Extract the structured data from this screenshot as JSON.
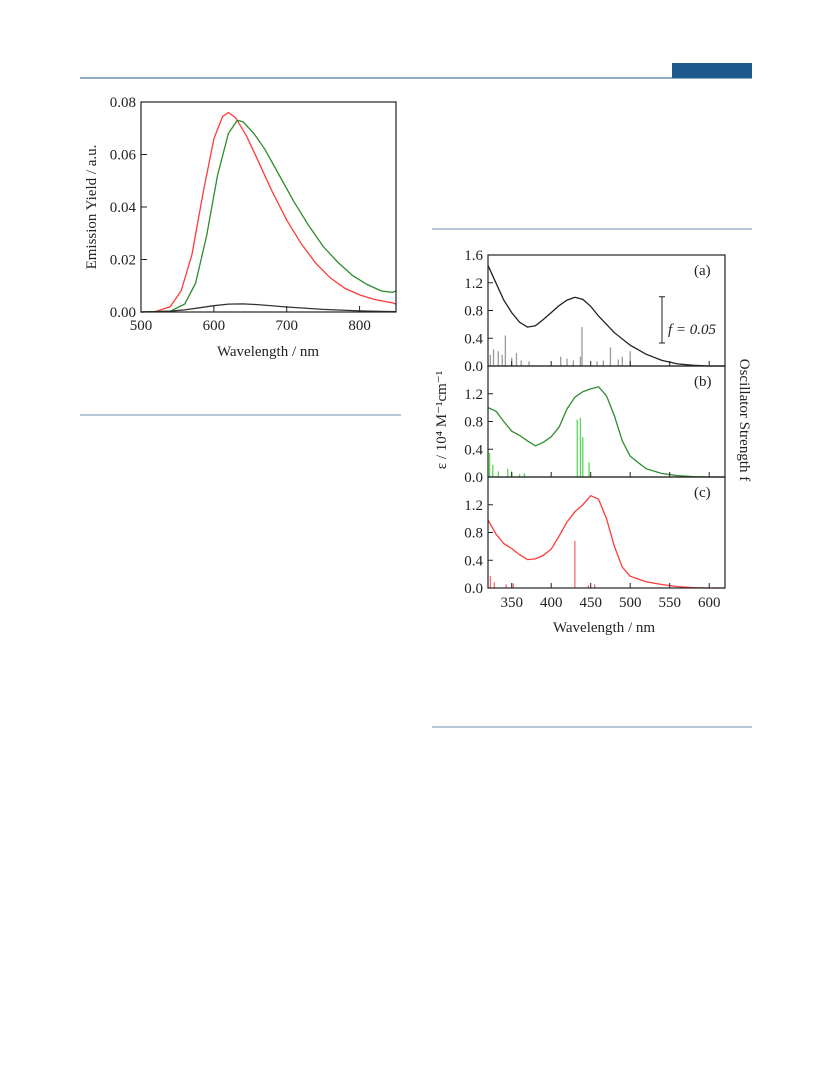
{
  "page": {
    "header_rule_color": "#1f5a8c",
    "header_tab_color": "#1f5a8c",
    "rule_color": "#6f8fad"
  },
  "chart_data": [
    {
      "type": "line",
      "title": "",
      "xlabel": "Wavelength / nm",
      "ylabel": "Emission Yield / a.u.",
      "xlim": [
        500,
        850
      ],
      "ylim": [
        0,
        0.08
      ],
      "x_ticks": [
        500,
        600,
        700,
        800
      ],
      "x_tick_labels": [
        "500",
        "600",
        "700",
        "800"
      ],
      "y_ticks": [
        0,
        0.02,
        0.04,
        0.06,
        0.08
      ],
      "y_tick_labels": [
        "0.00",
        "0.02",
        "0.04",
        "0.06",
        "0.08"
      ],
      "grid": false,
      "series": [
        {
          "color": "#ff3b3b",
          "x": [
            500,
            520,
            540,
            555,
            570,
            585,
            600,
            612,
            620,
            630,
            645,
            660,
            680,
            700,
            720,
            740,
            760,
            780,
            800,
            820,
            835,
            845,
            850
          ],
          "y": [
            0,
            0.0002,
            0.002,
            0.008,
            0.022,
            0.045,
            0.066,
            0.0745,
            0.076,
            0.074,
            0.067,
            0.058,
            0.046,
            0.035,
            0.026,
            0.0185,
            0.013,
            0.009,
            0.0065,
            0.0048,
            0.004,
            0.0035,
            0.003
          ]
        },
        {
          "color": "#2e8b2e",
          "x": [
            500,
            540,
            560,
            575,
            590,
            605,
            620,
            632,
            640,
            655,
            670,
            690,
            710,
            730,
            750,
            770,
            790,
            810,
            830,
            845,
            850
          ],
          "y": [
            0,
            0.0003,
            0.003,
            0.011,
            0.029,
            0.052,
            0.068,
            0.073,
            0.0725,
            0.068,
            0.062,
            0.052,
            0.042,
            0.033,
            0.025,
            0.019,
            0.014,
            0.0105,
            0.008,
            0.0075,
            0.008
          ]
        },
        {
          "color": "#333333",
          "x": [
            500,
            540,
            560,
            580,
            600,
            620,
            640,
            660,
            700,
            750,
            800,
            850
          ],
          "y": [
            0,
            0.0003,
            0.0008,
            0.0016,
            0.0024,
            0.003,
            0.0031,
            0.0028,
            0.0019,
            0.001,
            0.0004,
            0.0001
          ]
        }
      ]
    },
    {
      "type": "line",
      "title": "",
      "xlabel": "Wavelength / nm",
      "ylabel": "ε / 10⁴ M⁻¹cm⁻¹",
      "ylabel_right": "Oscillator Strength f",
      "xlim": [
        320,
        620
      ],
      "x_ticks": [
        350,
        400,
        450,
        500,
        550,
        600
      ],
      "x_tick_labels": [
        "350",
        "400",
        "450",
        "500",
        "550",
        "600"
      ],
      "grid": false,
      "scale_bar_label": "f = 0.05",
      "scale_bar_value": 0.05,
      "panels": [
        {
          "label": "(a)",
          "color": "#222222",
          "stick_color": "#9a9a9a",
          "ylim": [
            0,
            1.6
          ],
          "y_ticks": [
            0,
            0.4,
            0.8,
            1.2,
            1.6
          ],
          "y_tick_labels": [
            "0.0",
            "0.4",
            "0.8",
            "1.2",
            "1.6"
          ],
          "x": [
            320,
            330,
            340,
            350,
            360,
            370,
            380,
            390,
            400,
            410,
            420,
            430,
            440,
            450,
            460,
            480,
            500,
            520,
            540,
            560,
            580,
            600,
            620
          ],
          "y": [
            1.45,
            1.2,
            0.95,
            0.77,
            0.63,
            0.56,
            0.58,
            0.67,
            0.77,
            0.87,
            0.95,
            0.99,
            0.96,
            0.86,
            0.72,
            0.48,
            0.3,
            0.17,
            0.08,
            0.03,
            0.01,
            0.0,
            0.0
          ],
          "sticks_x": [
            323,
            327,
            333,
            338,
            342,
            350,
            356,
            362,
            372,
            412,
            420,
            428,
            437,
            439,
            458,
            466,
            475,
            485,
            490,
            500
          ],
          "sticks_f": [
            0.012,
            0.018,
            0.016,
            0.012,
            0.033,
            0.009,
            0.014,
            0.006,
            0.005,
            0.01,
            0.008,
            0.006,
            0.01,
            0.042,
            0.005,
            0.006,
            0.02,
            0.007,
            0.01,
            0.016
          ]
        },
        {
          "label": "(b)",
          "color": "#2e8b2e",
          "stick_color": "#57d957",
          "ylim": [
            0,
            1.6
          ],
          "y_ticks": [
            0,
            0.4,
            0.8,
            1.2
          ],
          "y_tick_labels": [
            "0.0",
            "0.4",
            "0.8",
            "1.2"
          ],
          "x": [
            320,
            330,
            340,
            350,
            360,
            370,
            380,
            390,
            400,
            410,
            420,
            430,
            440,
            450,
            460,
            470,
            480,
            490,
            500,
            520,
            540,
            560,
            580,
            600,
            620
          ],
          "y": [
            1.0,
            0.95,
            0.8,
            0.66,
            0.6,
            0.52,
            0.45,
            0.5,
            0.58,
            0.72,
            0.98,
            1.15,
            1.23,
            1.27,
            1.3,
            1.17,
            0.88,
            0.52,
            0.3,
            0.12,
            0.05,
            0.02,
            0.005,
            0.0,
            0.0
          ],
          "sticks_x": [
            322,
            326,
            333,
            345,
            350,
            360,
            366,
            433,
            437,
            440,
            448
          ],
          "sticks_f": [
            0.026,
            0.013,
            0.006,
            0.009,
            0.006,
            0.003,
            0.004,
            0.062,
            0.064,
            0.043,
            0.016
          ]
        },
        {
          "label": "(c)",
          "color": "#ff3b3b",
          "stick_color": "#ff6a6a",
          "ylim": [
            0,
            1.6
          ],
          "y_ticks": [
            0,
            0.4,
            0.8,
            1.2
          ],
          "y_tick_labels": [
            "0.0",
            "0.4",
            "0.8",
            "1.2"
          ],
          "x": [
            320,
            330,
            340,
            350,
            360,
            370,
            380,
            390,
            400,
            410,
            420,
            430,
            440,
            450,
            460,
            470,
            480,
            490,
            500,
            520,
            540,
            560,
            580,
            600,
            620
          ],
          "y": [
            0.98,
            0.78,
            0.64,
            0.57,
            0.48,
            0.41,
            0.42,
            0.47,
            0.56,
            0.75,
            0.95,
            1.1,
            1.2,
            1.33,
            1.28,
            1.0,
            0.6,
            0.3,
            0.17,
            0.09,
            0.05,
            0.02,
            0.005,
            0.0,
            0.0
          ],
          "sticks_x": [
            323,
            328,
            343,
            352,
            430,
            447,
            455
          ],
          "sticks_f": [
            0.013,
            0.006,
            0.004,
            0.005,
            0.051,
            0.003,
            0.004
          ]
        }
      ]
    }
  ]
}
